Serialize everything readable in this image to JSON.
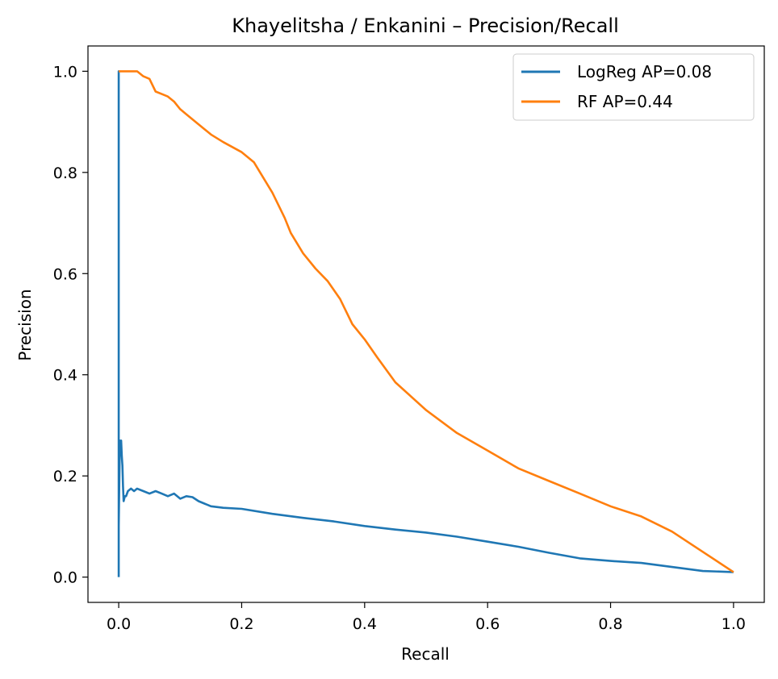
{
  "chart_data": {
    "type": "line",
    "title": "Khayelitsha / Enkanini – Precision/Recall",
    "xlabel": "Recall",
    "ylabel": "Precision",
    "xlim": [
      -0.05,
      1.05
    ],
    "ylim": [
      -0.05,
      1.05
    ],
    "x_ticks": [
      0.0,
      0.2,
      0.4,
      0.6,
      0.8,
      1.0
    ],
    "x_tick_labels": [
      "0.0",
      "0.2",
      "0.4",
      "0.6",
      "0.8",
      "1.0"
    ],
    "y_ticks": [
      0.0,
      0.2,
      0.4,
      0.6,
      0.8,
      1.0
    ],
    "y_tick_labels": [
      "0.0",
      "0.2",
      "0.4",
      "0.6",
      "0.8",
      "1.0"
    ],
    "grid": false,
    "legend_position": "top-right",
    "series": [
      {
        "name": "LogReg AP=0.08",
        "color": "#1f77b4",
        "x": [
          0.0,
          0.0,
          0.0,
          0.001,
          0.002,
          0.003,
          0.004,
          0.005,
          0.006,
          0.007,
          0.008,
          0.01,
          0.012,
          0.015,
          0.02,
          0.025,
          0.03,
          0.04,
          0.05,
          0.06,
          0.07,
          0.08,
          0.09,
          0.1,
          0.11,
          0.12,
          0.13,
          0.15,
          0.17,
          0.2,
          0.25,
          0.3,
          0.35,
          0.4,
          0.45,
          0.5,
          0.55,
          0.6,
          0.65,
          0.7,
          0.75,
          0.8,
          0.85,
          0.9,
          0.95,
          1.0
        ],
        "y": [
          0.0,
          1.0,
          0.1,
          0.2,
          0.27,
          0.25,
          0.27,
          0.24,
          0.22,
          0.18,
          0.15,
          0.16,
          0.16,
          0.17,
          0.175,
          0.17,
          0.175,
          0.17,
          0.165,
          0.17,
          0.165,
          0.16,
          0.165,
          0.155,
          0.16,
          0.158,
          0.15,
          0.14,
          0.137,
          0.135,
          0.125,
          0.117,
          0.11,
          0.101,
          0.094,
          0.088,
          0.08,
          0.07,
          0.06,
          0.048,
          0.037,
          0.032,
          0.028,
          0.02,
          0.012,
          0.01
        ]
      },
      {
        "name": "RF AP=0.44",
        "color": "#ff7f0e",
        "x": [
          0.0,
          0.005,
          0.01,
          0.02,
          0.03,
          0.04,
          0.05,
          0.06,
          0.07,
          0.08,
          0.09,
          0.1,
          0.11,
          0.12,
          0.13,
          0.15,
          0.17,
          0.2,
          0.22,
          0.25,
          0.27,
          0.28,
          0.3,
          0.32,
          0.34,
          0.36,
          0.38,
          0.4,
          0.42,
          0.45,
          0.5,
          0.55,
          0.6,
          0.65,
          0.7,
          0.75,
          0.8,
          0.85,
          0.9,
          0.95,
          1.0
        ],
        "y": [
          1.0,
          1.0,
          1.0,
          1.0,
          1.0,
          0.99,
          0.985,
          0.96,
          0.955,
          0.95,
          0.94,
          0.925,
          0.915,
          0.905,
          0.895,
          0.875,
          0.86,
          0.84,
          0.82,
          0.76,
          0.71,
          0.68,
          0.64,
          0.61,
          0.585,
          0.55,
          0.5,
          0.47,
          0.435,
          0.385,
          0.33,
          0.285,
          0.25,
          0.215,
          0.19,
          0.165,
          0.14,
          0.12,
          0.09,
          0.05,
          0.01
        ]
      }
    ]
  }
}
